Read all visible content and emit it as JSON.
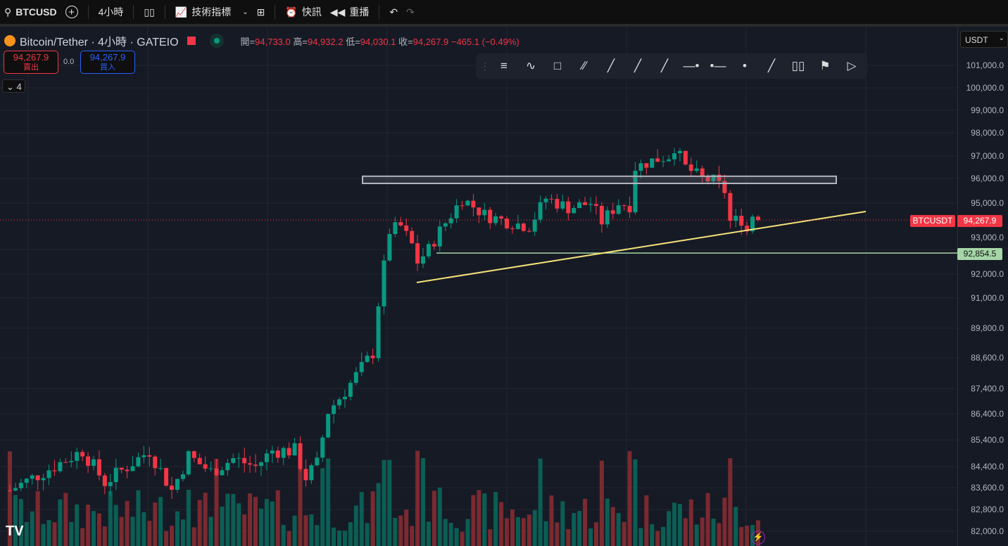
{
  "topbar": {
    "symbol": "BTCUSD",
    "interval": "4小時",
    "indicators": "技術指標",
    "alerts": "快訊",
    "replay": "重播"
  },
  "legend": {
    "title": "Bitcoin/Tether · 4小時 · GATEIO",
    "open_label": "開=",
    "open": "94,733.0",
    "high_label": "高=",
    "high": "94,932.2",
    "low_label": "低=",
    "low": "94,030.1",
    "close_label": "收=",
    "close": "94,267.9",
    "change": "−465.1 (−0.49%)"
  },
  "trade": {
    "sell_price": "94,267.9",
    "sell_label": "賣出",
    "spread": "0.0",
    "buy_price": "94,267.9",
    "buy_label": "買入"
  },
  "collapse": {
    "count": "4"
  },
  "axis": {
    "currency": "USDT",
    "ticks": [
      "101,000.0",
      "100,000.0",
      "99,000.0",
      "98,000.0",
      "97,000.0",
      "96,000.0",
      "95,000.0",
      "93,000.0",
      "92,000.0",
      "91,000.0",
      "89,800.0",
      "88,600.0",
      "87,400.0",
      "86,400.0",
      "85,400.0",
      "84,400.0",
      "83,600.0",
      "82,800.0",
      "82,000.0"
    ],
    "last_symbol": "BTCUSDT",
    "last_price": "94,267.9",
    "level_price": "92,854.5"
  },
  "colors": {
    "up": "#089981",
    "down": "#f23645",
    "trend": "#f5e47a",
    "level": "#a5d6a7",
    "bg": "#161a25"
  },
  "chart_data": {
    "type": "candlestick",
    "candles": 135,
    "price_keypoints": [
      [
        0,
        83500
      ],
      [
        13,
        85000
      ],
      [
        17,
        83800
      ],
      [
        25,
        85000
      ],
      [
        29,
        83500
      ],
      [
        32,
        84800
      ],
      [
        36,
        84200
      ],
      [
        40,
        84700
      ],
      [
        44,
        84400
      ],
      [
        47,
        85000
      ],
      [
        51,
        85000
      ],
      [
        53,
        84000
      ],
      [
        55,
        84500
      ],
      [
        57,
        86500
      ],
      [
        60,
        87300
      ],
      [
        63,
        88200
      ],
      [
        65,
        88800
      ],
      [
        66,
        90800
      ],
      [
        67,
        92300
      ],
      [
        68,
        93800
      ],
      [
        70,
        94000
      ],
      [
        72,
        93200
      ],
      [
        73,
        92500
      ],
      [
        75,
        93000
      ],
      [
        77,
        93800
      ],
      [
        79,
        94500
      ],
      [
        81,
        95200
      ],
      [
        85,
        94500
      ],
      [
        89,
        94200
      ],
      [
        93,
        94000
      ],
      [
        96,
        95200
      ],
      [
        100,
        94800
      ],
      [
        104,
        95000
      ],
      [
        106,
        94200
      ],
      [
        109,
        95000
      ],
      [
        111,
        94900
      ],
      [
        112,
        96500
      ],
      [
        115,
        96800
      ],
      [
        118,
        97000
      ],
      [
        119,
        97400
      ],
      [
        121,
        96500
      ],
      [
        124,
        96000
      ],
      [
        126,
        95900
      ],
      [
        128,
        95500
      ],
      [
        129,
        94200
      ],
      [
        131,
        94300
      ],
      [
        132,
        93800
      ],
      [
        133,
        94500
      ],
      [
        134,
        94268
      ]
    ],
    "levels": {
      "resistance_zone": [
        95800,
        96100
      ],
      "support": 92854.5,
      "last": 94267.9,
      "trendline": [
        [
          73,
          91700
        ],
        [
          154,
          94650
        ]
      ]
    }
  }
}
